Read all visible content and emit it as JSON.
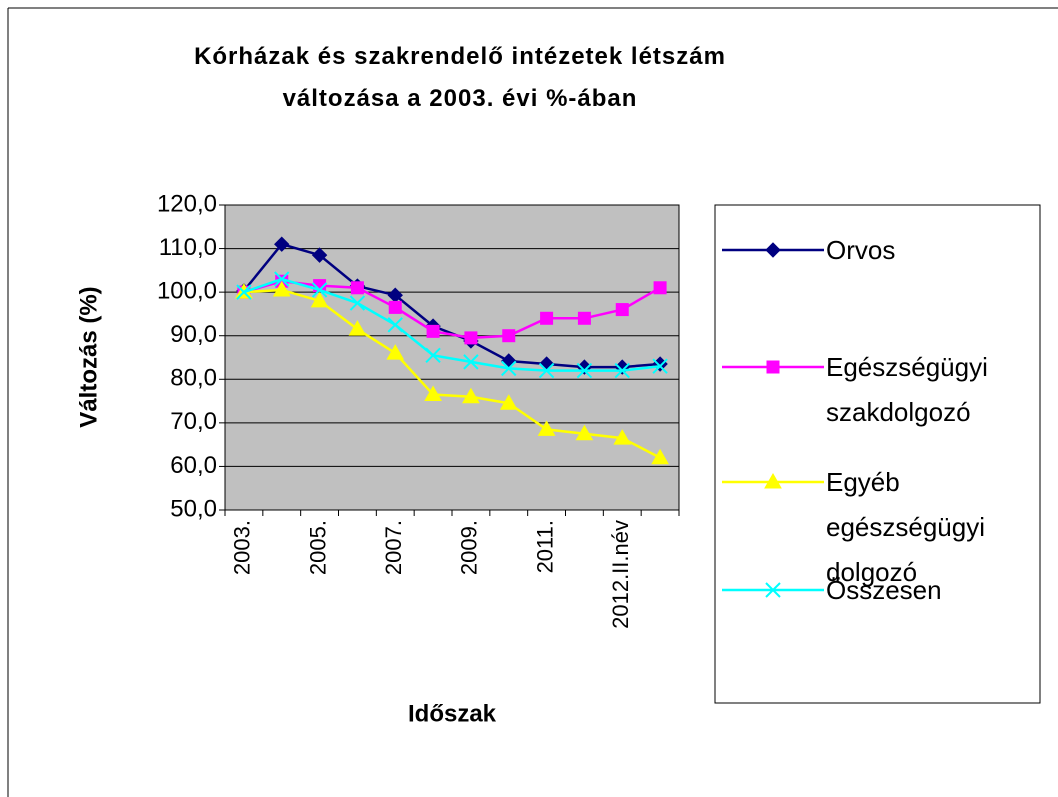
{
  "chart_data": {
    "type": "line",
    "title": "Kórházak és szakrendelő intézetek létszám változása a 2003. évi %-ában",
    "xlabel": "Időszak",
    "ylabel": "Változás (%)",
    "categories": [
      "2003.",
      null,
      "2005.",
      null,
      "2007.",
      null,
      "2009.",
      null,
      "2011.",
      null,
      "2012.II.név",
      null
    ],
    "ylim": [
      50,
      120
    ],
    "yticks": [
      {
        "value": 50,
        "label": "50,0"
      },
      {
        "value": 60,
        "label": "60,0"
      },
      {
        "value": 70,
        "label": "70,0"
      },
      {
        "value": 80,
        "label": "80,0"
      },
      {
        "value": 90,
        "label": "90,0"
      },
      {
        "value": 100,
        "label": "100,0"
      },
      {
        "value": 110,
        "label": "110,0"
      },
      {
        "value": 120,
        "label": "120,0"
      }
    ],
    "grid": true,
    "plot_background": "#c0c0c0",
    "legend": "right",
    "series": [
      {
        "name": "Orvos",
        "color": "#000080",
        "marker": "diamond",
        "values": [
          100.3,
          111,
          108.5,
          101.4,
          99.3,
          92.2,
          88.8,
          84.2,
          83.5,
          82.8,
          82.8,
          83.5
        ]
      },
      {
        "name": "Egészségügyi szakdolgozó",
        "color": "#ff00ff",
        "marker": "square",
        "values": [
          100,
          102.5,
          101.5,
          101,
          96.5,
          91,
          89.5,
          90,
          94,
          94,
          96,
          101
        ]
      },
      {
        "name": "Egyéb egészségügyi dolgozó",
        "color": "#ffff00",
        "marker": "triangle",
        "values": [
          100,
          100.5,
          98,
          91.5,
          86,
          76.5,
          76,
          74.5,
          68.5,
          67.5,
          66.5,
          62
        ]
      },
      {
        "name": "Összesen",
        "color": "#00ffff",
        "marker": "x",
        "values": [
          100,
          103,
          100.5,
          97.5,
          92.5,
          85.5,
          84,
          82.5,
          82,
          82,
          82,
          83
        ]
      }
    ]
  }
}
